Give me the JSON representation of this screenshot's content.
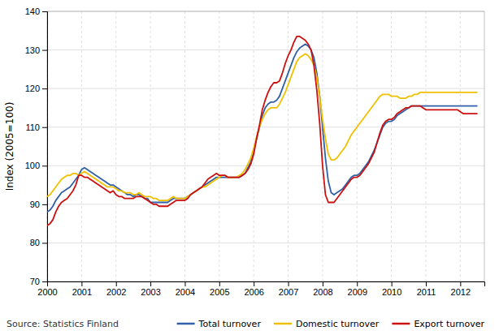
{
  "chart_data": {
    "type": "line",
    "ylabel": "Index (2005=100)",
    "annotations": [
      "Source: Statistics Finland"
    ],
    "xlim": [
      2000.0,
      2012.7
    ],
    "xticks": [
      2000,
      2001,
      2002,
      2003,
      2004,
      2005,
      2006,
      2007,
      2008,
      2009,
      2010,
      2011,
      2012
    ],
    "ylim": [
      70,
      140
    ],
    "yticks": [
      70,
      80,
      90,
      100,
      110,
      120,
      130,
      140
    ],
    "grid": true,
    "legend": "bottom",
    "x": [
      2000,
      2000.0833333333333,
      2000.1666666666667,
      2000.25,
      2000.3333333333333,
      2000.4166666666667,
      2000.5,
      2000.5833333333333,
      2000.6666666666667,
      2000.75,
      2000.8333333333333,
      2000.9166666666667,
      2001,
      2001.0833333333333,
      2001.1666666666667,
      2001.25,
      2001.3333333333333,
      2001.4166666666667,
      2001.5,
      2001.5833333333333,
      2001.6666666666667,
      2001.75,
      2001.8333333333333,
      2001.9166666666667,
      2002,
      2002.0833333333333,
      2002.1666666666667,
      2002.25,
      2002.3333333333333,
      2002.4166666666667,
      2002.5,
      2002.5833333333333,
      2002.6666666666667,
      2002.75,
      2002.8333333333333,
      2002.9166666666667,
      2003,
      2003.0833333333333,
      2003.1666666666667,
      2003.25,
      2003.3333333333333,
      2003.4166666666667,
      2003.5,
      2003.5833333333333,
      2003.6666666666667,
      2003.75,
      2003.8333333333333,
      2003.9166666666667,
      2004,
      2004.0833333333333,
      2004.1666666666667,
      2004.25,
      2004.3333333333333,
      2004.4166666666667,
      2004.5,
      2004.5833333333333,
      2004.6666666666667,
      2004.75,
      2004.8333333333333,
      2004.9166666666667,
      2005,
      2005.0833333333333,
      2005.1666666666667,
      2005.25,
      2005.3333333333333,
      2005.4166666666667,
      2005.5,
      2005.5833333333333,
      2005.6666666666667,
      2005.75,
      2005.8333333333333,
      2005.9166666666667,
      2006,
      2006.0833333333333,
      2006.1666666666667,
      2006.25,
      2006.3333333333333,
      2006.4166666666667,
      2006.5,
      2006.5833333333333,
      2006.6666666666667,
      2006.75,
      2006.8333333333333,
      2006.9166666666667,
      2007,
      2007.0833333333333,
      2007.1666666666667,
      2007.25,
      2007.3333333333333,
      2007.4166666666667,
      2007.5,
      2007.5833333333333,
      2007.6666666666667,
      2007.75,
      2007.8333333333333,
      2007.9166666666667,
      2008,
      2008.0833333333333,
      2008.1666666666667,
      2008.25,
      2008.3333333333333,
      2008.4166666666667,
      2008.5,
      2008.5833333333333,
      2008.6666666666667,
      2008.75,
      2008.8333333333333,
      2008.9166666666667,
      2009,
      2009.0833333333333,
      2009.1666666666667,
      2009.25,
      2009.3333333333333,
      2009.4166666666667,
      2009.5,
      2009.5833333333333,
      2009.6666666666667,
      2009.75,
      2009.8333333333333,
      2009.9166666666667,
      2010,
      2010.0833333333333,
      2010.1666666666667,
      2010.25,
      2010.3333333333333,
      2010.4166666666667,
      2010.5,
      2010.5833333333333,
      2010.6666666666667,
      2010.75,
      2010.8333333333333,
      2010.9166666666667,
      2011,
      2011.0833333333333,
      2011.1666666666667,
      2011.25,
      2011.3333333333333,
      2011.4166666666667,
      2011.5,
      2011.5833333333333,
      2011.6666666666667,
      2011.75,
      2011.8333333333333,
      2011.9166666666667,
      2012,
      2012.0833333333333,
      2012.1666666666667,
      2012.25,
      2012.3333333333333,
      2012.4166666666667,
      2012.5
    ],
    "series": [
      {
        "name": "Total turnover",
        "color": "#3060a8",
        "values": [
          88.0,
          88.5,
          89.5,
          91.0,
          92.0,
          93.0,
          93.5,
          94.0,
          94.5,
          95.5,
          96.5,
          97.5,
          99.0,
          99.5,
          99.0,
          98.5,
          98.0,
          97.5,
          97.0,
          96.5,
          96.0,
          95.5,
          95.0,
          95.0,
          94.5,
          94.0,
          93.5,
          93.0,
          92.5,
          92.5,
          92.0,
          92.5,
          92.5,
          92.0,
          91.5,
          91.5,
          90.5,
          90.5,
          90.5,
          90.5,
          90.5,
          90.5,
          90.5,
          91.0,
          91.5,
          91.5,
          91.5,
          91.5,
          91.5,
          92.0,
          92.5,
          93.0,
          93.5,
          94.0,
          94.5,
          95.0,
          95.5,
          96.0,
          96.5,
          97.0,
          97.0,
          97.0,
          97.0,
          97.0,
          97.0,
          97.0,
          97.0,
          97.0,
          97.5,
          98.0,
          99.5,
          101.0,
          104.0,
          107.0,
          110.0,
          113.0,
          115.0,
          116.0,
          116.5,
          116.5,
          117.0,
          118.0,
          120.0,
          122.0,
          124.0,
          126.0,
          128.0,
          129.5,
          130.5,
          131.0,
          131.5,
          131.0,
          130.0,
          128.0,
          124.0,
          118.0,
          110.0,
          102.0,
          96.0,
          93.0,
          92.5,
          93.0,
          93.5,
          94.0,
          95.0,
          96.0,
          97.0,
          97.5,
          97.5,
          98.0,
          99.0,
          100.0,
          101.0,
          102.5,
          104.0,
          106.0,
          108.0,
          110.0,
          111.0,
          111.5,
          111.5,
          112.0,
          113.0,
          113.5,
          114.0,
          114.5,
          115.0,
          115.5,
          115.5,
          115.5,
          115.5,
          115.5,
          115.5,
          115.5,
          115.5,
          115.5,
          115.5,
          115.5,
          115.5,
          115.5,
          115.5,
          115.5,
          115.5,
          115.5,
          115.5,
          115.5,
          115.5,
          115.5,
          115.5,
          115.5,
          115.5
        ]
      },
      {
        "name": "Domestic turnover",
        "color": "#f0c000",
        "values": [
          92.0,
          92.5,
          93.5,
          94.5,
          95.5,
          96.5,
          97.0,
          97.5,
          97.5,
          98.0,
          98.0,
          97.5,
          98.0,
          98.5,
          98.0,
          97.5,
          97.0,
          96.5,
          96.0,
          95.5,
          95.0,
          94.5,
          94.5,
          94.5,
          94.0,
          93.5,
          93.5,
          93.0,
          93.0,
          93.0,
          92.5,
          92.5,
          93.0,
          92.5,
          92.0,
          92.0,
          92.0,
          91.5,
          91.5,
          91.0,
          91.0,
          91.0,
          91.0,
          91.5,
          92.0,
          91.5,
          91.5,
          91.5,
          91.5,
          92.0,
          92.5,
          93.0,
          93.5,
          94.0,
          94.5,
          94.5,
          95.0,
          95.5,
          96.0,
          96.5,
          97.0,
          97.5,
          97.5,
          97.0,
          97.0,
          97.0,
          97.0,
          97.5,
          98.0,
          99.0,
          100.5,
          102.0,
          104.5,
          107.5,
          110.0,
          112.0,
          113.5,
          114.5,
          115.0,
          115.0,
          115.0,
          116.0,
          117.5,
          119.0,
          121.0,
          123.0,
          125.0,
          127.0,
          128.0,
          128.5,
          129.0,
          128.5,
          127.5,
          126.0,
          123.0,
          118.0,
          112.0,
          107.0,
          103.0,
          101.5,
          101.5,
          102.0,
          103.0,
          104.0,
          105.0,
          106.5,
          108.0,
          109.0,
          110.0,
          111.0,
          112.0,
          113.0,
          114.0,
          115.0,
          116.0,
          117.0,
          118.0,
          118.5,
          118.5,
          118.5,
          118.0,
          118.0,
          118.0,
          117.5,
          117.5,
          117.5,
          118.0,
          118.0,
          118.5,
          118.5,
          119.0,
          119.0,
          119.0,
          119.0,
          119.0,
          119.0,
          119.0,
          119.0,
          119.0,
          119.0,
          119.0,
          119.0,
          119.0,
          119.0,
          119.0,
          119.0,
          119.0,
          119.0,
          119.0,
          119.0,
          119.0
        ]
      },
      {
        "name": "Export turnover",
        "color": "#cc1010",
        "values": [
          84.5,
          85.0,
          86.0,
          88.0,
          89.5,
          90.5,
          91.0,
          91.5,
          92.5,
          93.5,
          95.0,
          97.5,
          97.5,
          97.0,
          97.0,
          96.5,
          96.0,
          95.5,
          95.0,
          94.5,
          94.0,
          93.5,
          93.0,
          93.5,
          92.5,
          92.0,
          92.0,
          91.5,
          91.5,
          91.5,
          91.5,
          92.0,
          92.0,
          92.0,
          91.5,
          91.0,
          90.5,
          90.0,
          90.0,
          89.5,
          89.5,
          89.5,
          89.5,
          90.0,
          90.5,
          91.0,
          91.0,
          91.0,
          91.0,
          91.5,
          92.5,
          93.0,
          93.5,
          94.0,
          94.5,
          95.5,
          96.5,
          97.0,
          97.5,
          98.0,
          97.5,
          97.5,
          97.5,
          97.0,
          97.0,
          97.0,
          97.0,
          97.0,
          97.5,
          98.0,
          99.0,
          100.5,
          103.0,
          107.0,
          110.5,
          114.5,
          117.0,
          119.0,
          120.5,
          121.5,
          121.5,
          122.0,
          124.0,
          126.5,
          128.5,
          130.0,
          132.0,
          133.5,
          133.5,
          133.0,
          132.5,
          131.5,
          130.0,
          126.0,
          119.5,
          111.0,
          100.0,
          92.5,
          90.5,
          90.5,
          90.5,
          91.5,
          92.5,
          93.5,
          94.5,
          95.5,
          96.5,
          97.0,
          97.0,
          97.5,
          98.5,
          99.5,
          100.5,
          102.0,
          103.5,
          106.0,
          108.5,
          110.5,
          111.5,
          112.0,
          112.0,
          112.5,
          113.5,
          114.0,
          114.5,
          115.0,
          115.0,
          115.5,
          115.5,
          115.5,
          115.5,
          115.0,
          114.5,
          114.5,
          114.5,
          114.5,
          114.5,
          114.5,
          114.5,
          114.5,
          114.5,
          114.5,
          114.5,
          114.5,
          114.0,
          113.5,
          113.5,
          113.5,
          113.5,
          113.5,
          113.5
        ]
      }
    ]
  }
}
